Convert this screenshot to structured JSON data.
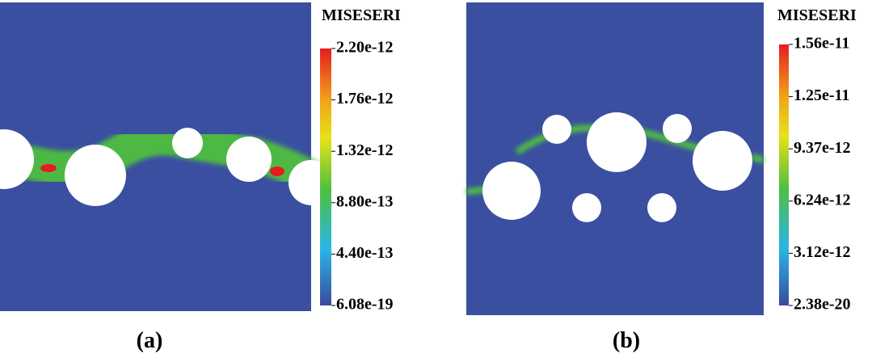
{
  "panels": [
    {
      "caption": "(a)",
      "colorbar": {
        "title": "MISESERI",
        "ticks": [
          "2.20e-12",
          "1.76e-12",
          "1.32e-12",
          "8.80e-13",
          "4.40e-13",
          "6.08e-19"
        ]
      }
    },
    {
      "caption": "(b)",
      "colorbar": {
        "title": "MISESERI",
        "ticks": [
          "1.56e-11",
          "1.25e-11",
          "9.37e-12",
          "6.24e-12",
          "3.12e-12",
          "2.38e-20"
        ]
      }
    }
  ]
}
